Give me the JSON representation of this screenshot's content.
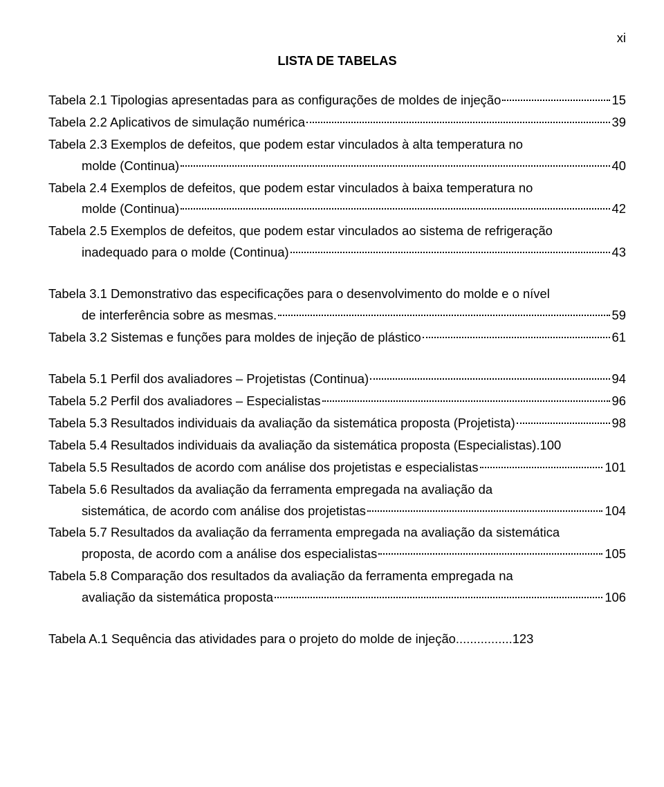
{
  "page_number": "xi",
  "heading": "LISTA DE TABELAS",
  "entries": [
    {
      "wrap": false,
      "text": "Tabela 2.1 Tipologias apresentadas para as configurações de moldes de injeção",
      "page": "15"
    },
    {
      "wrap": false,
      "text": "Tabela 2.2 Aplicativos de simulação numérica",
      "page": "39"
    },
    {
      "wrap": true,
      "first": "Tabela 2.3 Exemplos de defeitos, que podem estar vinculados à alta temperatura no",
      "cont": "molde (Continua)",
      "page": "40"
    },
    {
      "wrap": true,
      "first": "Tabela 2.4 Exemplos de defeitos, que podem estar vinculados à baixa temperatura no",
      "cont": "molde (Continua)",
      "page": "42"
    },
    {
      "wrap": true,
      "first": "Tabela 2.5 Exemplos de defeitos, que podem estar vinculados ao sistema de refrigeração",
      "cont": "inadequado para o molde (Continua)",
      "page": "43"
    },
    {
      "spacer": true
    },
    {
      "wrap": true,
      "first": "Tabela 3.1 Demonstrativo das especificações para o desenvolvimento do molde e o nível",
      "cont": "de interferência sobre as mesmas.",
      "page": "59"
    },
    {
      "wrap": false,
      "text": "Tabela 3.2 Sistemas e funções para moldes de injeção de plástico",
      "page": "61"
    },
    {
      "spacer": true
    },
    {
      "wrap": false,
      "text": "Tabela 5.1 Perfil dos avaliadores – Projetistas (Continua)",
      "page": "94"
    },
    {
      "wrap": false,
      "text": "Tabela 5.2 Perfil dos avaliadores – Especialistas",
      "page": "96"
    },
    {
      "wrap": false,
      "text": "Tabela 5.3 Resultados individuais da avaliação da sistemática proposta (Projetista)",
      "page": "98"
    },
    {
      "wrap": false,
      "noleaders": true,
      "text": "Tabela 5.4 Resultados individuais da avaliação da sistemática proposta (Especialistas).",
      "page": "100"
    },
    {
      "wrap": false,
      "text": "Tabela 5.5 Resultados de acordo com análise dos projetistas e especialistas",
      "page": "101"
    },
    {
      "wrap": true,
      "first": "Tabela 5.6 Resultados da avaliação da ferramenta empregada na avaliação da",
      "cont": "sistemática, de acordo com análise dos projetistas",
      "page": "104"
    },
    {
      "wrap": true,
      "first": "Tabela 5.7 Resultados da avaliação da ferramenta empregada na avaliação da sistemática",
      "cont": "proposta, de acordo com a análise dos especialistas",
      "page": "105"
    },
    {
      "wrap": true,
      "first": "Tabela 5.8 Comparação dos resultados da avaliação da ferramenta empregada na",
      "cont": "avaliação da sistemática proposta",
      "page": "106"
    },
    {
      "spacer": true
    },
    {
      "wrap": false,
      "noleaders": true,
      "text": "Tabela A.1 Sequência das atividades para o projeto do molde de injeção",
      "page": "123",
      "sep": "................"
    }
  ]
}
